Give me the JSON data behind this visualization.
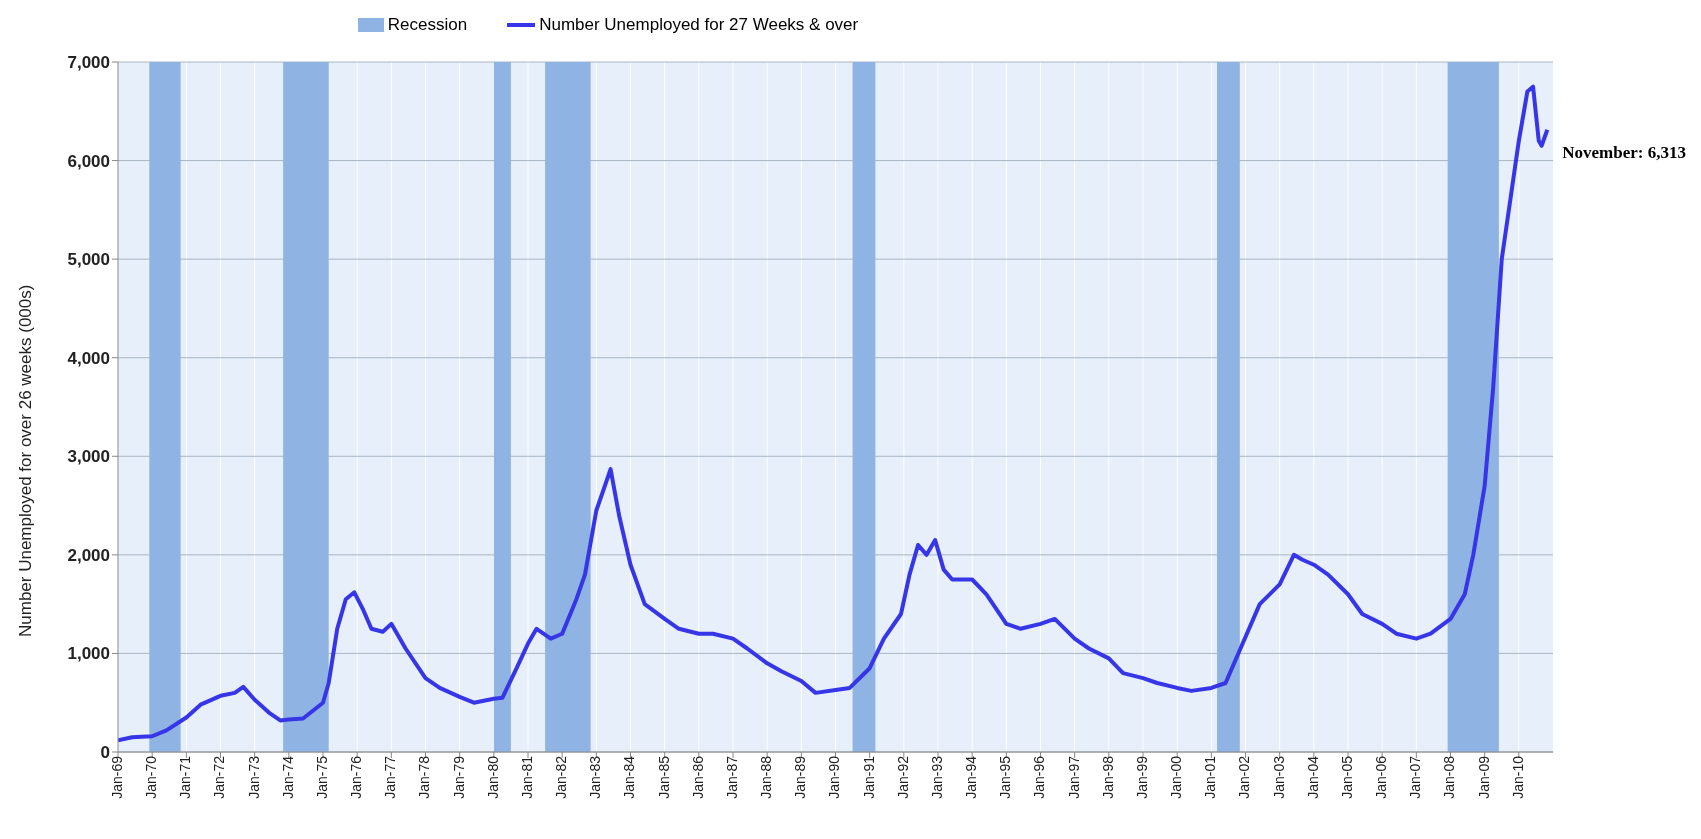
{
  "chart_data": {
    "type": "line",
    "ylabel": "Number Unemployed for over 26 weeks (000s)",
    "x": [
      "1969-01",
      "1969-06",
      "1970-01",
      "1970-06",
      "1971-01",
      "1971-06",
      "1972-01",
      "1972-06",
      "1972-09",
      "1973-01",
      "1973-06",
      "1973-10",
      "1974-01",
      "1974-06",
      "1975-01",
      "1975-03",
      "1975-06",
      "1975-09",
      "1975-12",
      "1976-03",
      "1976-06",
      "1976-10",
      "1977-01",
      "1977-06",
      "1978-01",
      "1978-06",
      "1979-01",
      "1979-06",
      "1980-01",
      "1980-04",
      "1980-09",
      "1981-01",
      "1981-04",
      "1981-09",
      "1982-01",
      "1982-06",
      "1982-09",
      "1983-01",
      "1983-04",
      "1983-06",
      "1983-09",
      "1984-01",
      "1984-06",
      "1985-01",
      "1985-06",
      "1986-01",
      "1986-06",
      "1987-01",
      "1987-06",
      "1988-01",
      "1988-06",
      "1989-01",
      "1989-06",
      "1990-01",
      "1990-06",
      "1991-01",
      "1991-06",
      "1991-12",
      "1992-03",
      "1992-06",
      "1992-09",
      "1992-12",
      "1993-03",
      "1993-06",
      "1994-01",
      "1994-06",
      "1995-01",
      "1995-06",
      "1996-01",
      "1996-06",
      "1997-01",
      "1997-06",
      "1998-01",
      "1998-06",
      "1999-01",
      "1999-06",
      "2000-01",
      "2000-06",
      "2001-01",
      "2001-06",
      "2001-12",
      "2002-06",
      "2003-01",
      "2003-06",
      "2003-09",
      "2004-01",
      "2004-06",
      "2005-01",
      "2005-06",
      "2006-01",
      "2006-06",
      "2007-01",
      "2007-06",
      "2008-01",
      "2008-06",
      "2008-09",
      "2009-01",
      "2009-04",
      "2009-07",
      "2009-10",
      "2010-01",
      "2010-04",
      "2010-06",
      "2010-08",
      "2010-09",
      "2010-11"
    ],
    "series": [
      {
        "name": "Number Unemployed for 27 Weeks & over",
        "color": "#3636e8",
        "values": [
          120,
          150,
          160,
          220,
          350,
          480,
          570,
          600,
          660,
          530,
          400,
          320,
          330,
          340,
          500,
          700,
          1250,
          1550,
          1620,
          1450,
          1250,
          1220,
          1300,
          1050,
          750,
          650,
          560,
          500,
          540,
          550,
          850,
          1100,
          1250,
          1150,
          1200,
          1550,
          1800,
          2450,
          2700,
          2870,
          2400,
          1900,
          1500,
          1350,
          1250,
          1200,
          1200,
          1150,
          1050,
          900,
          820,
          720,
          600,
          630,
          650,
          850,
          1150,
          1400,
          1800,
          2100,
          2000,
          2150,
          1850,
          1750,
          1750,
          1600,
          1300,
          1250,
          1300,
          1350,
          1150,
          1050,
          950,
          800,
          750,
          700,
          650,
          620,
          650,
          700,
          1100,
          1500,
          1700,
          2000,
          1950,
          1900,
          1800,
          1600,
          1400,
          1300,
          1200,
          1150,
          1200,
          1350,
          1600,
          2000,
          2700,
          3700,
          5000,
          5600,
          6200,
          6700,
          6750,
          6200,
          6150,
          6313
        ]
      }
    ],
    "bands": [
      {
        "axis": "x",
        "from": "1969-12",
        "to": "1970-11",
        "label": "Recession",
        "color": "#8fb4e3"
      },
      {
        "axis": "x",
        "from": "1973-11",
        "to": "1975-03",
        "color": "#8fb4e3"
      },
      {
        "axis": "x",
        "from": "1980-01",
        "to": "1980-07",
        "color": "#8fb4e3"
      },
      {
        "axis": "x",
        "from": "1981-07",
        "to": "1982-11",
        "color": "#8fb4e3"
      },
      {
        "axis": "x",
        "from": "1990-07",
        "to": "1991-03",
        "color": "#8fb4e3"
      },
      {
        "axis": "x",
        "from": "2001-03",
        "to": "2001-11",
        "color": "#8fb4e3"
      },
      {
        "axis": "x",
        "from": "2007-12",
        "to": "2009-06",
        "color": "#8fb4e3"
      }
    ],
    "annotations": [
      {
        "text": "November: 6,313",
        "x": "2010-11",
        "y": 6313
      }
    ],
    "xlim": [
      "1969-01",
      "2011-01"
    ],
    "xticks": [
      {
        "value": "1969-01",
        "label": "Jan-69"
      },
      {
        "value": "1970-01",
        "label": "Jan-70"
      },
      {
        "value": "1971-01",
        "label": "Jan-71"
      },
      {
        "value": "1972-01",
        "label": "Jan-72"
      },
      {
        "value": "1973-01",
        "label": "Jan-73"
      },
      {
        "value": "1974-01",
        "label": "Jan-74"
      },
      {
        "value": "1975-01",
        "label": "Jan-75"
      },
      {
        "value": "1976-01",
        "label": "Jan-76"
      },
      {
        "value": "1977-01",
        "label": "Jan-77"
      },
      {
        "value": "1978-01",
        "label": "Jan-78"
      },
      {
        "value": "1979-01",
        "label": "Jan-79"
      },
      {
        "value": "1980-01",
        "label": "Jan-80"
      },
      {
        "value": "1981-01",
        "label": "Jan-81"
      },
      {
        "value": "1982-01",
        "label": "Jan-82"
      },
      {
        "value": "1983-01",
        "label": "Jan-83"
      },
      {
        "value": "1984-01",
        "label": "Jan-84"
      },
      {
        "value": "1985-01",
        "label": "Jan-85"
      },
      {
        "value": "1986-01",
        "label": "Jan-86"
      },
      {
        "value": "1987-01",
        "label": "Jan-87"
      },
      {
        "value": "1988-01",
        "label": "Jan-88"
      },
      {
        "value": "1989-01",
        "label": "Jan-89"
      },
      {
        "value": "1990-01",
        "label": "Jan-90"
      },
      {
        "value": "1991-01",
        "label": "Jan-91"
      },
      {
        "value": "1992-01",
        "label": "Jan-92"
      },
      {
        "value": "1993-01",
        "label": "Jan-93"
      },
      {
        "value": "1994-01",
        "label": "Jan-94"
      },
      {
        "value": "1995-01",
        "label": "Jan-95"
      },
      {
        "value": "1996-01",
        "label": "Jan-96"
      },
      {
        "value": "1997-01",
        "label": "Jan-97"
      },
      {
        "value": "1998-01",
        "label": "Jan-98"
      },
      {
        "value": "1999-01",
        "label": "Jan-99"
      },
      {
        "value": "2000-01",
        "label": "Jan-00"
      },
      {
        "value": "2001-01",
        "label": "Jan-01"
      },
      {
        "value": "2002-01",
        "label": "Jan-02"
      },
      {
        "value": "2003-01",
        "label": "Jan-03"
      },
      {
        "value": "2004-01",
        "label": "Jan-04"
      },
      {
        "value": "2005-01",
        "label": "Jan-05"
      },
      {
        "value": "2006-01",
        "label": "Jan-06"
      },
      {
        "value": "2007-01",
        "label": "Jan-07"
      },
      {
        "value": "2008-01",
        "label": "Jan-08"
      },
      {
        "value": "2009-01",
        "label": "Jan-09"
      },
      {
        "value": "2010-01",
        "label": "Jan-10"
      }
    ],
    "ylim": [
      0,
      7000
    ],
    "yticks": [
      0,
      {
        "value": 1000,
        "label": "1,000"
      },
      {
        "value": 2000,
        "label": "2,000"
      },
      {
        "value": 3000,
        "label": "3,000"
      },
      {
        "value": 4000,
        "label": "4,000"
      },
      {
        "value": 5000,
        "label": "5,000"
      },
      {
        "value": 6000,
        "label": "6,000"
      },
      {
        "value": 7000,
        "label": "7,000"
      }
    ],
    "grid": true,
    "legend": "top",
    "marker": "none",
    "line_style": "solid"
  }
}
